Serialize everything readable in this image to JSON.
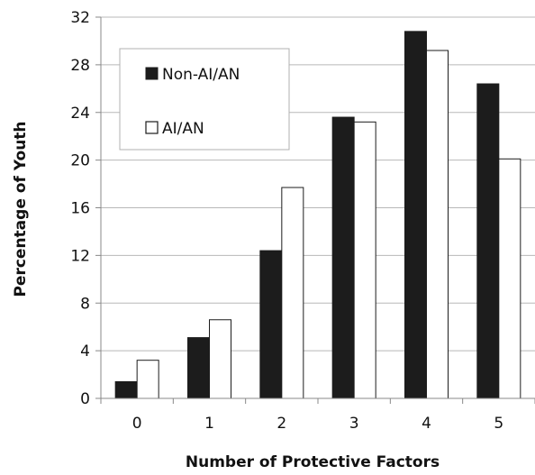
{
  "chart_data": {
    "type": "bar",
    "xlabel": "Number of Protective Factors",
    "ylabel": "Percentage of Youth",
    "categories": [
      "0",
      "1",
      "2",
      "3",
      "4",
      "5"
    ],
    "ylim": [
      0,
      32
    ],
    "yticks": [
      "0",
      "4",
      "8",
      "12",
      "16",
      "20",
      "24",
      "28",
      "32"
    ],
    "grid": "horizontal",
    "legend_position": "top-left",
    "series": [
      {
        "name": "Non-AI/AN",
        "color": "#1c1c1c",
        "values": [
          1.4,
          5.1,
          12.4,
          23.6,
          30.8,
          26.4
        ]
      },
      {
        "name": "AI/AN",
        "color": "#ffffff",
        "values": [
          3.2,
          6.6,
          17.7,
          23.2,
          29.2,
          20.1
        ]
      }
    ]
  }
}
